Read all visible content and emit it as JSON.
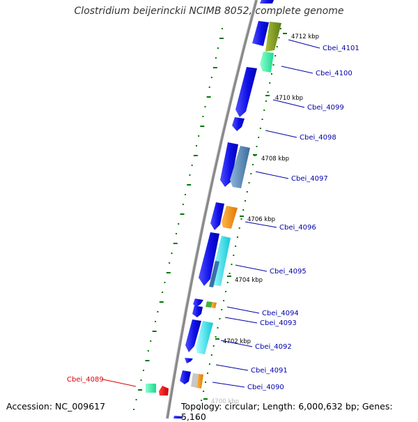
{
  "title": "Clostridium beijerinckii NCIMB 8052, complete genome",
  "footer": {
    "accession": "Accession: NC_009617",
    "topology": "Topology: circular; Length: 6,000,632 bp; Genes: 5,160"
  },
  "colors": {
    "backbone": "#8a8a8a",
    "cds": "#1a1af0",
    "label": "#0000aa",
    "label_highlight": "#dd0000",
    "tick": "#007700"
  },
  "ticks": [
    "4712 kbp",
    "4710 kbp",
    "4708 kbp",
    "4706 kbp",
    "4704 kbp",
    "4702 kbp",
    "4700 kbp"
  ],
  "genes": [
    {
      "name": "Cbei_4101",
      "highlight": false
    },
    {
      "name": "Cbei_4100",
      "highlight": false
    },
    {
      "name": "Cbei_4099",
      "highlight": false
    },
    {
      "name": "Cbei_4098",
      "highlight": false
    },
    {
      "name": "Cbei_4097",
      "highlight": false
    },
    {
      "name": "Cbei_4096",
      "highlight": false
    },
    {
      "name": "Cbei_4095",
      "highlight": false
    },
    {
      "name": "Cbei_4094",
      "highlight": false
    },
    {
      "name": "Cbei_4093",
      "highlight": false
    },
    {
      "name": "Cbei_4092",
      "highlight": false
    },
    {
      "name": "Cbei_4091",
      "highlight": false
    },
    {
      "name": "Cbei_4090",
      "highlight": false
    },
    {
      "name": "Cbei_4089",
      "highlight": true
    }
  ]
}
